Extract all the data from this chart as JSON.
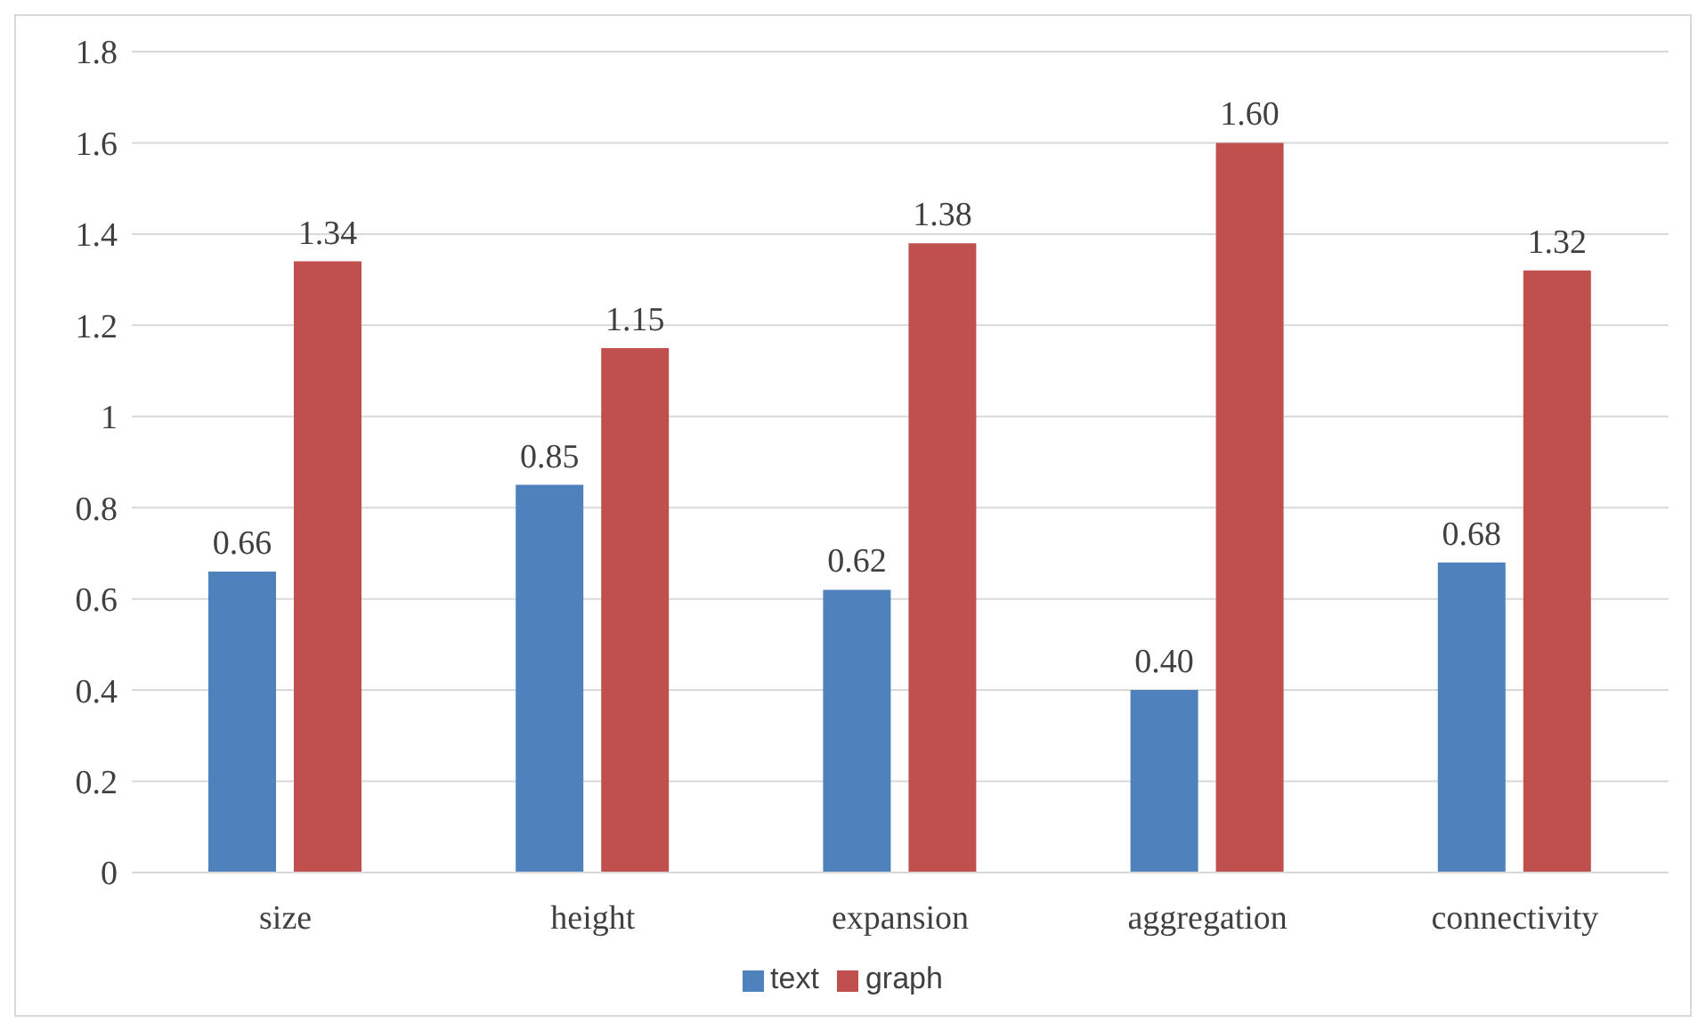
{
  "chart_data": {
    "type": "bar",
    "categories": [
      "size",
      "height",
      "expansion",
      "aggregation",
      "connectivity"
    ],
    "series": [
      {
        "name": "text",
        "color": "#4f81bd",
        "values": [
          0.66,
          0.85,
          0.62,
          0.4,
          0.68
        ],
        "value_labels": [
          "0.66",
          "0.85",
          "0.62",
          "0.40",
          "0.68"
        ]
      },
      {
        "name": "graph",
        "color": "#c0504d",
        "values": [
          1.34,
          1.15,
          1.38,
          1.6,
          1.32
        ],
        "value_labels": [
          "1.34",
          "1.15",
          "1.38",
          "1.60",
          "1.32"
        ]
      }
    ],
    "ylim": [
      0,
      1.8
    ],
    "yticks": [
      0,
      0.2,
      0.4,
      0.6,
      0.8,
      1,
      1.2,
      1.4,
      1.6,
      1.8
    ],
    "grid": "y",
    "legend": "bottom"
  }
}
